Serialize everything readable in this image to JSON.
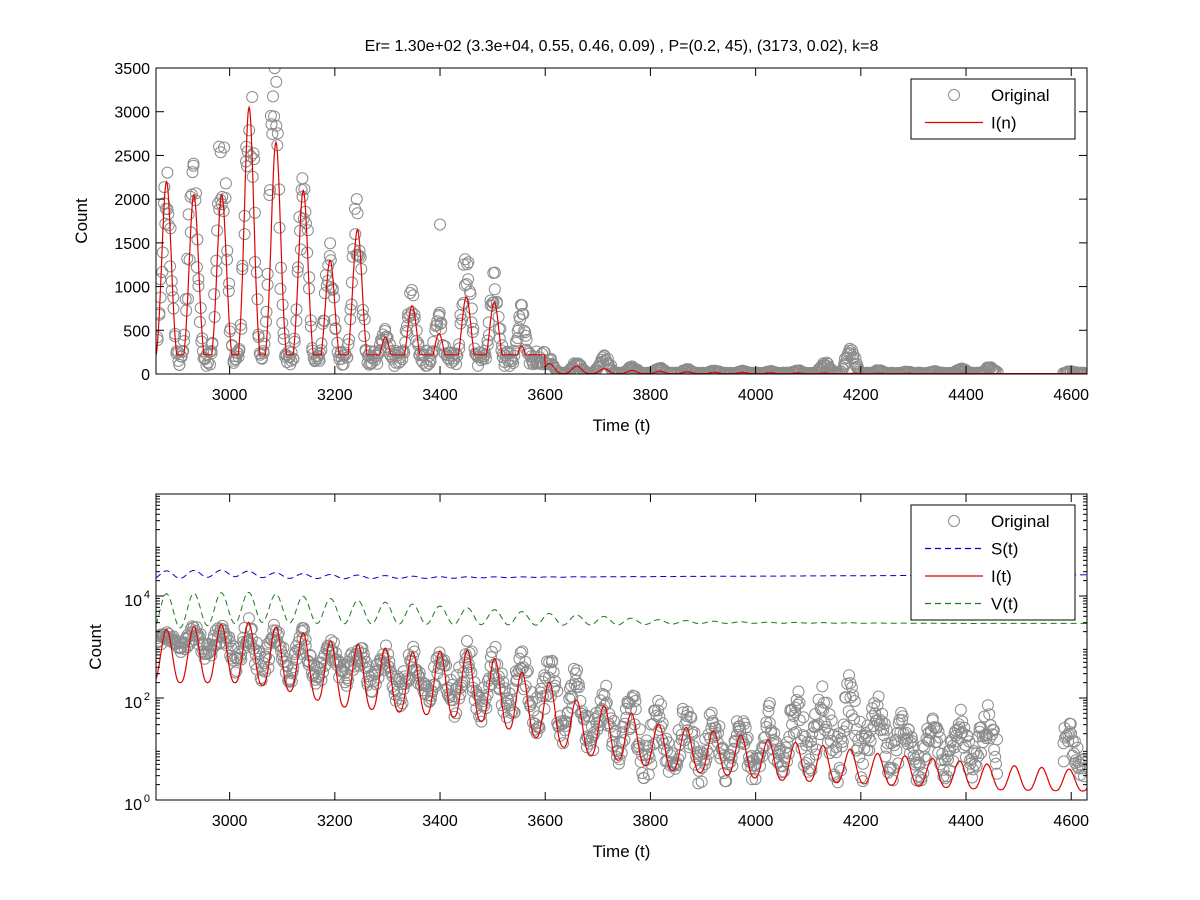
{
  "chart_data": [
    {
      "type": "scatter",
      "title": "Er= 1.30e+02 (3.3e+04, 0.55, 0.46, 0.09) , P=(0.2, 45), (3173, 0.02), k=8",
      "xlabel": "Time (t)",
      "ylabel": "Count",
      "xlim": [
        2860,
        4630
      ],
      "ylim": [
        0,
        3500
      ],
      "yscale": "linear",
      "xticks": [
        "3000",
        "3200",
        "3400",
        "3600",
        "3800",
        "4000",
        "4200",
        "4400",
        "4600"
      ],
      "xtick_values": [
        3000,
        3200,
        3400,
        3600,
        3800,
        4000,
        4200,
        4400,
        4600
      ],
      "yticks": [
        "0",
        "500",
        "1000",
        "1500",
        "2000",
        "2500",
        "3000",
        "3500"
      ],
      "ytick_values": [
        0,
        500,
        1000,
        1500,
        2000,
        2500,
        3000,
        3500
      ],
      "grid": false,
      "legend_position": "top-right",
      "legend": [
        "Original",
        "I(n)"
      ],
      "series": [
        {
          "name": "Original",
          "style": "circle-markers",
          "color": "#8c8c8c",
          "peaks": [
            {
              "t": 2880,
              "max": 2150
            },
            {
              "t": 2930,
              "max": 2120
            },
            {
              "t": 2985,
              "max": 2600
            },
            {
              "t": 3038,
              "max": 3300
            },
            {
              "t": 3085,
              "max": 3080
            },
            {
              "t": 3140,
              "max": 2050
            },
            {
              "t": 3190,
              "max": 1280
            },
            {
              "t": 3242,
              "max": 1770
            },
            {
              "t": 3295,
              "max": 490
            },
            {
              "t": 3345,
              "max": 880
            },
            {
              "t": 3398,
              "max": 630
            },
            {
              "t": 3450,
              "max": 1230
            },
            {
              "t": 3503,
              "max": 1020
            },
            {
              "t": 3555,
              "max": 680
            },
            {
              "t": 3608,
              "max": 150
            },
            {
              "t": 3660,
              "max": 120
            },
            {
              "t": 3712,
              "max": 200
            },
            {
              "t": 3765,
              "max": 80
            },
            {
              "t": 3818,
              "max": 60
            },
            {
              "t": 3870,
              "max": 50
            },
            {
              "t": 3922,
              "max": 40
            },
            {
              "t": 3975,
              "max": 35
            },
            {
              "t": 4028,
              "max": 30
            },
            {
              "t": 4080,
              "max": 40
            },
            {
              "t": 4132,
              "max": 120
            },
            {
              "t": 4180,
              "max": 250
            },
            {
              "t": 4235,
              "max": 40
            },
            {
              "t": 4288,
              "max": 25
            },
            {
              "t": 4340,
              "max": 30
            },
            {
              "t": 4392,
              "max": 60
            },
            {
              "t": 4445,
              "max": 70
            },
            {
              "t": 4600,
              "max": 30
            }
          ],
          "isolated_points": [
            {
              "t": 3400,
              "y": 1710
            }
          ]
        },
        {
          "name": "I(n)",
          "style": "solid-line",
          "color": "#e00000",
          "peaks": [
            {
              "t": 2880,
              "max": 2200
            },
            {
              "t": 2932,
              "max": 2050
            },
            {
              "t": 2985,
              "max": 2050
            },
            {
              "t": 3037,
              "max": 3050
            },
            {
              "t": 3088,
              "max": 2650
            },
            {
              "t": 3140,
              "max": 2100
            },
            {
              "t": 3191,
              "max": 1300
            },
            {
              "t": 3243,
              "max": 1650
            },
            {
              "t": 3296,
              "max": 420
            },
            {
              "t": 3347,
              "max": 780
            },
            {
              "t": 3398,
              "max": 460
            },
            {
              "t": 3450,
              "max": 880
            },
            {
              "t": 3503,
              "max": 820
            },
            {
              "t": 3555,
              "max": 320
            },
            {
              "t": 3608,
              "max": 120
            },
            {
              "t": 3660,
              "max": 90
            },
            {
              "t": 3712,
              "max": 60
            },
            {
              "t": 3765,
              "max": 40
            },
            {
              "t": 3818,
              "max": 30
            },
            {
              "t": 3870,
              "max": 25
            },
            {
              "t": 3922,
              "max": 20
            },
            {
              "t": 3975,
              "max": 18
            },
            {
              "t": 4028,
              "max": 15
            },
            {
              "t": 4080,
              "max": 12
            },
            {
              "t": 4132,
              "max": 10
            },
            {
              "t": 4185,
              "max": 9
            },
            {
              "t": 4237,
              "max": 8
            },
            {
              "t": 4290,
              "max": 7
            },
            {
              "t": 4342,
              "max": 6
            },
            {
              "t": 4395,
              "max": 6
            },
            {
              "t": 4445,
              "max": 5
            },
            {
              "t": 4497,
              "max": 5
            },
            {
              "t": 4548,
              "max": 4
            },
            {
              "t": 4600,
              "max": 4
            }
          ]
        }
      ]
    },
    {
      "type": "scatter",
      "title": "",
      "xlabel": "Time (t)",
      "ylabel": "Count",
      "xlim": [
        2860,
        4630
      ],
      "ylim": [
        1,
        1000000
      ],
      "yscale": "log",
      "xticks": [
        "3000",
        "3200",
        "3400",
        "3600",
        "3800",
        "4000",
        "4200",
        "4400",
        "4600"
      ],
      "xtick_values": [
        3000,
        3200,
        3400,
        3600,
        3800,
        4000,
        4200,
        4400,
        4600
      ],
      "ytick_values": [
        1,
        100,
        10000
      ],
      "yticks": [
        {
          "base": "10",
          "exp": "0"
        },
        {
          "base": "10",
          "exp": "2"
        },
        {
          "base": "10",
          "exp": "4"
        }
      ],
      "grid": false,
      "legend_position": "top-right",
      "legend": [
        "Original",
        "S(t)",
        "I(t)",
        "V(t)"
      ],
      "series": [
        {
          "name": "Original",
          "style": "circle-markers",
          "color": "#8c8c8c",
          "envelope": [
            {
              "t": 2880,
              "max": 2150,
              "min": 800
            },
            {
              "t": 3040,
              "max": 3300,
              "min": 200
            },
            {
              "t": 3200,
              "max": 1500,
              "min": 150
            },
            {
              "t": 3350,
              "max": 880,
              "min": 50
            },
            {
              "t": 3450,
              "max": 1230,
              "min": 40
            },
            {
              "t": 3550,
              "max": 800,
              "min": 20
            },
            {
              "t": 3700,
              "max": 200,
              "min": 5
            },
            {
              "t": 3800,
              "max": 80,
              "min": 2
            },
            {
              "t": 4000,
              "max": 40,
              "min": 2
            },
            {
              "t": 4180,
              "max": 250,
              "min": 2
            },
            {
              "t": 4300,
              "max": 30,
              "min": 2
            },
            {
              "t": 4445,
              "max": 70,
              "min": 2
            },
            {
              "t": 4600,
              "max": 30,
              "min": 2
            }
          ]
        },
        {
          "name": "S(t)",
          "style": "dashed-line",
          "color": "#0000cc",
          "points": [
            {
              "t": 2880,
              "y": 26000
            },
            {
              "t": 3000,
              "y": 28000
            },
            {
              "t": 3100,
              "y": 25000
            },
            {
              "t": 3200,
              "y": 24000
            },
            {
              "t": 3400,
              "y": 23000
            },
            {
              "t": 3600,
              "y": 23500
            },
            {
              "t": 3800,
              "y": 24000
            },
            {
              "t": 4000,
              "y": 24500
            },
            {
              "t": 4200,
              "y": 25000
            },
            {
              "t": 4400,
              "y": 25500
            },
            {
              "t": 4630,
              "y": 26000
            }
          ],
          "oscillation": {
            "period": 52,
            "decay_until": 3400,
            "amplitude_log10": 0.08
          }
        },
        {
          "name": "I(t)",
          "style": "solid-line",
          "color": "#e00000",
          "peaks": [
            {
              "t": 2880,
              "max": 2200,
              "min": 200
            },
            {
              "t": 3037,
              "max": 3050,
              "min": 200
            },
            {
              "t": 3191,
              "max": 1300,
              "min": 70
            },
            {
              "t": 3347,
              "max": 780,
              "min": 50
            },
            {
              "t": 3450,
              "max": 880,
              "min": 40
            },
            {
              "t": 3555,
              "max": 320,
              "min": 20
            },
            {
              "t": 3660,
              "max": 90,
              "min": 8
            },
            {
              "t": 3818,
              "max": 30,
              "min": 4
            },
            {
              "t": 4028,
              "max": 15,
              "min": 2.5
            },
            {
              "t": 4237,
              "max": 8,
              "min": 2
            },
            {
              "t": 4445,
              "max": 5,
              "min": 1.6
            },
            {
              "t": 4600,
              "max": 4,
              "min": 1.5
            }
          ],
          "period": 52
        },
        {
          "name": "V(t)",
          "style": "dashed-line",
          "color": "#1a7a1a",
          "points": [
            {
              "t": 2880,
              "y": 5000
            },
            {
              "t": 3040,
              "y": 6000
            },
            {
              "t": 3200,
              "y": 5000
            },
            {
              "t": 3400,
              "y": 4200
            },
            {
              "t": 3600,
              "y": 3500
            },
            {
              "t": 3800,
              "y": 3100
            },
            {
              "t": 4000,
              "y": 3000
            },
            {
              "t": 4200,
              "y": 2950
            },
            {
              "t": 4400,
              "y": 2900
            },
            {
              "t": 4630,
              "y": 2900
            }
          ],
          "oscillation": {
            "period": 52,
            "decay_until": 3750,
            "amplitude_log10": 0.35
          }
        }
      ]
    }
  ]
}
